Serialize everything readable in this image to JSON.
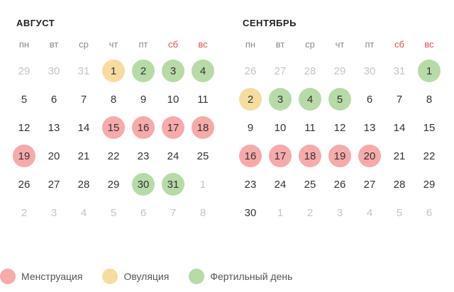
{
  "colors": {
    "menstruation": "#f6aaa9",
    "ovulation": "#f6dd9f",
    "fertile": "#b6dba7",
    "weekend_text": "#e0504a",
    "other_month_text": "#c4c4c4"
  },
  "calendar": {
    "months": [
      {
        "title": "АВГУСТ",
        "weekdays": [
          "пн",
          "вт",
          "ср",
          "чт",
          "пт",
          "сб",
          "вс"
        ],
        "weeks": [
          [
            {
              "d": "29",
              "o": true
            },
            {
              "d": "30",
              "o": true
            },
            {
              "d": "31",
              "o": true
            },
            {
              "d": "1",
              "m": "ovulation"
            },
            {
              "d": "2",
              "m": "fertile"
            },
            {
              "d": "3",
              "m": "fertile"
            },
            {
              "d": "4",
              "m": "fertile"
            }
          ],
          [
            {
              "d": "5"
            },
            {
              "d": "6"
            },
            {
              "d": "7"
            },
            {
              "d": "8"
            },
            {
              "d": "9"
            },
            {
              "d": "10"
            },
            {
              "d": "11"
            }
          ],
          [
            {
              "d": "12"
            },
            {
              "d": "13"
            },
            {
              "d": "14"
            },
            {
              "d": "15",
              "m": "menstruation"
            },
            {
              "d": "16",
              "m": "menstruation"
            },
            {
              "d": "17",
              "m": "menstruation"
            },
            {
              "d": "18",
              "m": "menstruation"
            }
          ],
          [
            {
              "d": "19",
              "m": "menstruation"
            },
            {
              "d": "20"
            },
            {
              "d": "21"
            },
            {
              "d": "22"
            },
            {
              "d": "23"
            },
            {
              "d": "24"
            },
            {
              "d": "25"
            }
          ],
          [
            {
              "d": "26"
            },
            {
              "d": "27"
            },
            {
              "d": "28"
            },
            {
              "d": "29"
            },
            {
              "d": "30",
              "m": "fertile"
            },
            {
              "d": "31",
              "m": "fertile"
            },
            {
              "d": "1",
              "o": true
            }
          ],
          [
            {
              "d": "2",
              "o": true
            },
            {
              "d": "3",
              "o": true
            },
            {
              "d": "4",
              "o": true
            },
            {
              "d": "5",
              "o": true
            },
            {
              "d": "6",
              "o": true
            },
            {
              "d": "7",
              "o": true
            },
            {
              "d": "8",
              "o": true
            }
          ]
        ]
      },
      {
        "title": "СЕНТЯБРЬ",
        "weekdays": [
          "пн",
          "вт",
          "ср",
          "чт",
          "пт",
          "сб",
          "вс"
        ],
        "weeks": [
          [
            {
              "d": "26",
              "o": true
            },
            {
              "d": "27",
              "o": true
            },
            {
              "d": "28",
              "o": true
            },
            {
              "d": "29",
              "o": true
            },
            {
              "d": "30",
              "o": true
            },
            {
              "d": "31",
              "o": true
            },
            {
              "d": "1",
              "m": "fertile"
            }
          ],
          [
            {
              "d": "2",
              "m": "ovulation"
            },
            {
              "d": "3",
              "m": "fertile"
            },
            {
              "d": "4",
              "m": "fertile"
            },
            {
              "d": "5",
              "m": "fertile"
            },
            {
              "d": "6"
            },
            {
              "d": "7"
            },
            {
              "d": "8"
            }
          ],
          [
            {
              "d": "9"
            },
            {
              "d": "10"
            },
            {
              "d": "11"
            },
            {
              "d": "12"
            },
            {
              "d": "13"
            },
            {
              "d": "14"
            },
            {
              "d": "15"
            }
          ],
          [
            {
              "d": "16",
              "m": "menstruation"
            },
            {
              "d": "17",
              "m": "menstruation"
            },
            {
              "d": "18",
              "m": "menstruation"
            },
            {
              "d": "19",
              "m": "menstruation"
            },
            {
              "d": "20",
              "m": "menstruation"
            },
            {
              "d": "21"
            },
            {
              "d": "22"
            }
          ],
          [
            {
              "d": "23"
            },
            {
              "d": "24"
            },
            {
              "d": "25"
            },
            {
              "d": "26"
            },
            {
              "d": "27"
            },
            {
              "d": "28"
            },
            {
              "d": "29"
            }
          ],
          [
            {
              "d": "30"
            },
            {
              "d": "1",
              "o": true
            },
            {
              "d": "2",
              "o": true
            },
            {
              "d": "3",
              "o": true
            },
            {
              "d": "4",
              "o": true
            },
            {
              "d": "5",
              "o": true
            },
            {
              "d": "6",
              "o": true
            }
          ]
        ]
      }
    ]
  },
  "legend": {
    "menstruation_label": "Менструация",
    "ovulation_label": "Овуляция",
    "fertile_label": "Фертильный день"
  }
}
